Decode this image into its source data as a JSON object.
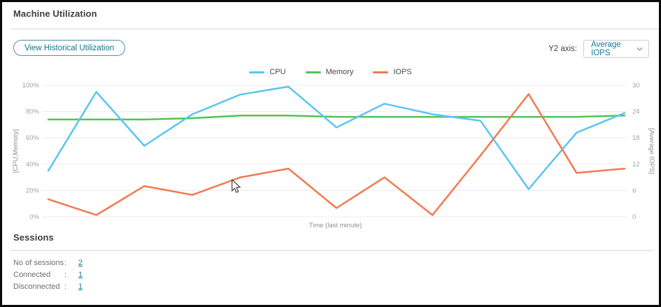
{
  "header": {
    "title": "Machine Utilization"
  },
  "toolbar": {
    "view_historical_button": "View Historical Utilization",
    "y2_axis_label": "Y2 axis:",
    "y2_axis_value": "Average IOPS"
  },
  "chart_data": {
    "type": "line",
    "title": "",
    "xlabel": "Time (last minute)",
    "x_points": 13,
    "grid": true,
    "legend_position": "top-center",
    "y_left": {
      "label": "[CPU,Memory]",
      "min": 0,
      "max": 100,
      "ticks": [
        "100%",
        "80%",
        "60%",
        "40%",
        "20%",
        "0%"
      ]
    },
    "y_right": {
      "label": "[Average IOPS]",
      "min": 0,
      "max": 30,
      "ticks": [
        "30",
        "24",
        "18",
        "12",
        "6",
        "0"
      ]
    },
    "series": [
      {
        "name": "Memory",
        "axis": "left",
        "color": "#50c452",
        "values": [
          74,
          74,
          74,
          75,
          77,
          77,
          76,
          76,
          76,
          76,
          76,
          76,
          77
        ]
      },
      {
        "name": "CPU",
        "axis": "left",
        "color": "#5bc5f2",
        "values": [
          35,
          95,
          54,
          78,
          93,
          99,
          68,
          86,
          78,
          73,
          21,
          64,
          79
        ]
      },
      {
        "name": "IOPS",
        "axis": "right",
        "color": "#f4794f",
        "values": [
          4,
          0.4,
          7,
          5,
          9,
          11,
          2,
          9,
          0.4,
          14,
          28,
          10,
          11
        ]
      }
    ],
    "legend_order": [
      "CPU",
      "Memory",
      "IOPS"
    ]
  },
  "sessions": {
    "title": "Sessions",
    "rows": [
      {
        "label": "No of sessions",
        "separator": ":",
        "value": "2"
      },
      {
        "label": "Connected",
        "separator": ":",
        "value": "1"
      },
      {
        "label": "Disconnected",
        "separator": ":",
        "value": "1"
      }
    ]
  },
  "colors": {
    "accent": "#0f7e98",
    "cpu": "#5bc5f2",
    "memory": "#50c452",
    "iops": "#f4794f",
    "grid": "#ececec",
    "tick_text": "#a3a3a3"
  }
}
